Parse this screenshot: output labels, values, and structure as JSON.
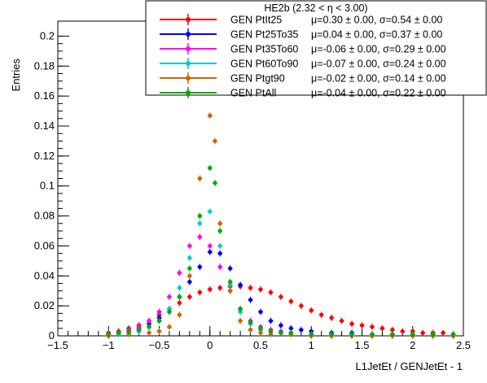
{
  "chart_data": {
    "type": "scatter",
    "title": "",
    "xlabel": "L1JetEt / GENJetEt - 1",
    "ylabel": "Entries",
    "xlim": [
      -1.5,
      2.5
    ],
    "ylim": [
      0,
      0.21
    ],
    "x_ticks": [
      -1.5,
      -1,
      -0.5,
      0,
      0.5,
      1,
      1.5,
      2,
      2.5
    ],
    "x_tick_labels": [
      "−1.5",
      "−1",
      "−0.5",
      "0",
      "0.5",
      "1",
      "1.5",
      "2",
      "2.5"
    ],
    "y_ticks": [
      0,
      0.02,
      0.04,
      0.06,
      0.08,
      0.1,
      0.12,
      0.14,
      0.16,
      0.18,
      0.2
    ],
    "y_tick_labels": [
      "0",
      "0.02",
      "0.04",
      "0.06",
      "0.08",
      "0.1",
      "0.12",
      "0.14",
      "0.16",
      "0.18",
      "0.2"
    ],
    "grid": false,
    "legend": {
      "placement": "top-right",
      "header": "HE2b (2.32 < η < 3.00)",
      "entries": [
        {
          "label": "GEN PtIt25",
          "stats": "μ=0.30 ± 0.00, σ=0.54 ± 0.00",
          "color": "#ff0000"
        },
        {
          "label": "GEN Pt25To35",
          "stats": "μ=0.04 ± 0.00, σ=0.37 ± 0.00",
          "color": "#0000ff"
        },
        {
          "label": "GEN Pt35To60",
          "stats": "μ=-0.06 ± 0.00, σ=0.29 ± 0.00",
          "color": "#ff00ff"
        },
        {
          "label": "GEN Pt60To90",
          "stats": "μ=-0.07 ± 0.00, σ=0.24 ± 0.00",
          "color": "#00cccc"
        },
        {
          "label": "GEN Ptgt90",
          "stats": "μ=-0.02 ± 0.00, σ=0.14 ± 0.00",
          "color": "#cc6600"
        },
        {
          "label": "GEN PtAll",
          "stats": "μ=-0.04 ± 0.00, σ=0.22 ± 0.00",
          "color": "#00aa00"
        }
      ]
    },
    "series": [
      {
        "name": "GEN PtIt25",
        "color": "#ff0000",
        "x": [
          -1.0,
          -0.9,
          -0.8,
          -0.7,
          -0.6,
          -0.5,
          -0.4,
          -0.3,
          -0.2,
          -0.1,
          0.0,
          0.1,
          0.2,
          0.3,
          0.4,
          0.5,
          0.6,
          0.7,
          0.8,
          0.9,
          1.0,
          1.1,
          1.2,
          1.3,
          1.4,
          1.5,
          1.6,
          1.7,
          1.8,
          1.9,
          2.0,
          2.1,
          2.2,
          2.3,
          2.4
        ],
        "y": [
          0.002,
          0.003,
          0.005,
          0.007,
          0.01,
          0.014,
          0.018,
          0.022,
          0.026,
          0.029,
          0.031,
          0.032,
          0.033,
          0.033,
          0.032,
          0.031,
          0.029,
          0.026,
          0.023,
          0.02,
          0.017,
          0.014,
          0.012,
          0.01,
          0.008,
          0.007,
          0.006,
          0.005,
          0.004,
          0.003,
          0.003,
          0.002,
          0.002,
          0.002,
          0.001
        ]
      },
      {
        "name": "GEN Pt25To35",
        "color": "#0000ff",
        "x": [
          -1.0,
          -0.9,
          -0.8,
          -0.7,
          -0.6,
          -0.5,
          -0.4,
          -0.3,
          -0.2,
          -0.1,
          0.0,
          0.1,
          0.2,
          0.3,
          0.4,
          0.5,
          0.6,
          0.7,
          0.8,
          0.9,
          1.0,
          1.2,
          1.4,
          1.6,
          1.8,
          2.0,
          2.2,
          2.4
        ],
        "y": [
          0.001,
          0.002,
          0.003,
          0.005,
          0.008,
          0.012,
          0.018,
          0.026,
          0.036,
          0.046,
          0.056,
          0.055,
          0.045,
          0.034,
          0.024,
          0.016,
          0.01,
          0.007,
          0.005,
          0.004,
          0.003,
          0.002,
          0.002,
          0.001,
          0.001,
          0.001,
          0.001,
          0.001
        ]
      },
      {
        "name": "GEN Pt35To60",
        "color": "#ff00ff",
        "x": [
          -1.0,
          -0.9,
          -0.8,
          -0.7,
          -0.6,
          -0.5,
          -0.4,
          -0.3,
          -0.2,
          -0.1,
          0.0,
          0.1,
          0.2,
          0.3,
          0.4,
          0.5,
          0.6,
          0.7,
          0.8,
          1.0,
          1.2,
          1.4,
          1.6,
          1.8,
          2.0,
          2.2,
          2.4
        ],
        "y": [
          0.001,
          0.002,
          0.004,
          0.006,
          0.01,
          0.016,
          0.026,
          0.042,
          0.06,
          0.066,
          0.06,
          0.046,
          0.03,
          0.018,
          0.01,
          0.006,
          0.004,
          0.003,
          0.002,
          0.001,
          0.001,
          0.001,
          0.001,
          0.001,
          0.001,
          0.001,
          0.001
        ]
      },
      {
        "name": "GEN Pt60To90",
        "color": "#00cccc",
        "x": [
          -1.0,
          -0.9,
          -0.8,
          -0.7,
          -0.6,
          -0.5,
          -0.4,
          -0.3,
          -0.2,
          -0.1,
          0.0,
          0.1,
          0.2,
          0.3,
          0.4,
          0.5,
          0.6,
          0.7,
          0.8,
          1.0,
          1.2,
          1.4,
          1.6,
          1.8,
          2.0,
          2.2,
          2.4
        ],
        "y": [
          0.001,
          0.001,
          0.002,
          0.003,
          0.006,
          0.01,
          0.018,
          0.032,
          0.052,
          0.075,
          0.083,
          0.06,
          0.034,
          0.016,
          0.008,
          0.004,
          0.003,
          0.002,
          0.001,
          0.001,
          0.001,
          0.001,
          0.001,
          0.001,
          0.001,
          0.001,
          0.001
        ]
      },
      {
        "name": "GEN Ptgt90",
        "color": "#cc6600",
        "x": [
          -1.0,
          -0.8,
          -0.6,
          -0.5,
          -0.4,
          -0.3,
          -0.2,
          -0.1,
          0.0,
          0.05,
          0.1,
          0.2,
          0.3,
          0.4,
          0.5,
          0.6,
          0.8,
          1.0,
          1.2,
          1.4,
          1.6,
          1.8,
          2.0,
          2.2,
          2.4
        ],
        "y": [
          0.0,
          0.001,
          0.002,
          0.003,
          0.006,
          0.014,
          0.04,
          0.105,
          0.147,
          0.13,
          0.075,
          0.03,
          0.01,
          0.004,
          0.002,
          0.001,
          0.001,
          0.0,
          0.0,
          0.0,
          0.0,
          0.0,
          0.0,
          0.0,
          0.0
        ]
      },
      {
        "name": "GEN PtAll",
        "color": "#00aa00",
        "x": [
          -1.0,
          -0.9,
          -0.8,
          -0.7,
          -0.6,
          -0.5,
          -0.4,
          -0.3,
          -0.2,
          -0.1,
          0.0,
          0.05,
          0.1,
          0.2,
          0.3,
          0.4,
          0.5,
          0.6,
          0.7,
          0.8,
          1.0,
          1.2,
          1.4,
          1.6,
          1.8,
          2.0,
          2.2,
          2.4
        ],
        "y": [
          0.001,
          0.002,
          0.003,
          0.004,
          0.006,
          0.01,
          0.016,
          0.026,
          0.045,
          0.08,
          0.112,
          0.102,
          0.07,
          0.036,
          0.018,
          0.009,
          0.005,
          0.003,
          0.002,
          0.002,
          0.001,
          0.001,
          0.001,
          0.001,
          0.001,
          0.001,
          0.001,
          0.001
        ]
      }
    ]
  }
}
